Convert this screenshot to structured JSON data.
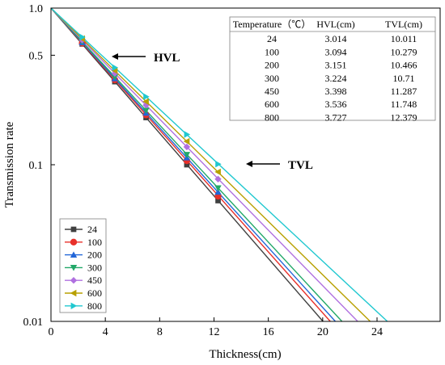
{
  "chart_data": {
    "type": "line",
    "title": "",
    "xlabel": "Thickness(cm)",
    "ylabel": "Transmission rate",
    "xlim": [
      0,
      27
    ],
    "ylim": [
      0.01,
      1.0
    ],
    "yscale": "log",
    "xticks": [
      "0",
      "4",
      "8",
      "12",
      "16",
      "20",
      "24"
    ],
    "yticks": [
      "0.01",
      "0.1",
      "0.5",
      "1.0"
    ],
    "x_points": [
      0,
      2.3,
      4.7,
      7.0,
      10.0,
      12.3
    ],
    "series": [
      {
        "name": "24",
        "color": "#404040",
        "marker": "square",
        "mu": 0.23,
        "y": [
          1.0,
          0.59,
          0.339,
          0.2,
          0.1,
          0.059
        ]
      },
      {
        "name": "100",
        "color": "#e8302a",
        "marker": "circle",
        "mu": 0.224,
        "y": [
          1.0,
          0.597,
          0.348,
          0.208,
          0.106,
          0.063
        ]
      },
      {
        "name": "200",
        "color": "#2266d8",
        "marker": "triangle-up",
        "mu": 0.22,
        "y": [
          1.0,
          0.603,
          0.355,
          0.214,
          0.111,
          0.067
        ]
      },
      {
        "name": "300",
        "color": "#22a868",
        "marker": "triangle-down",
        "mu": 0.215,
        "y": [
          1.0,
          0.61,
          0.363,
          0.222,
          0.116,
          0.071
        ]
      },
      {
        "name": "450",
        "color": "#b070e0",
        "marker": "diamond",
        "mu": 0.204,
        "y": [
          1.0,
          0.625,
          0.383,
          0.24,
          0.13,
          0.081
        ]
      },
      {
        "name": "600",
        "color": "#b8a000",
        "marker": "triangle-left",
        "mu": 0.196,
        "y": [
          1.0,
          0.637,
          0.399,
          0.253,
          0.141,
          0.09
        ]
      },
      {
        "name": "800",
        "color": "#20c8d0",
        "marker": "triangle-right",
        "mu": 0.186,
        "y": [
          1.0,
          0.652,
          0.417,
          0.272,
          0.156,
          0.101
        ]
      }
    ],
    "annotations": [
      {
        "text": "HVL",
        "arrow": "left"
      },
      {
        "text": "TVL",
        "arrow": "left"
      }
    ],
    "legend_position": "bottom-left",
    "table": {
      "headers": [
        "Temperature（℃）",
        "HVL(cm)",
        "TVL(cm)"
      ],
      "rows": [
        [
          "24",
          "3.014",
          "10.011"
        ],
        [
          "100",
          "3.094",
          "10.279"
        ],
        [
          "200",
          "3.151",
          "10.466"
        ],
        [
          "300",
          "3.224",
          "10.71"
        ],
        [
          "450",
          "3.398",
          "11.287"
        ],
        [
          "600",
          "3.536",
          "11.748"
        ],
        [
          "800",
          "3.727",
          "12.379"
        ]
      ]
    }
  }
}
